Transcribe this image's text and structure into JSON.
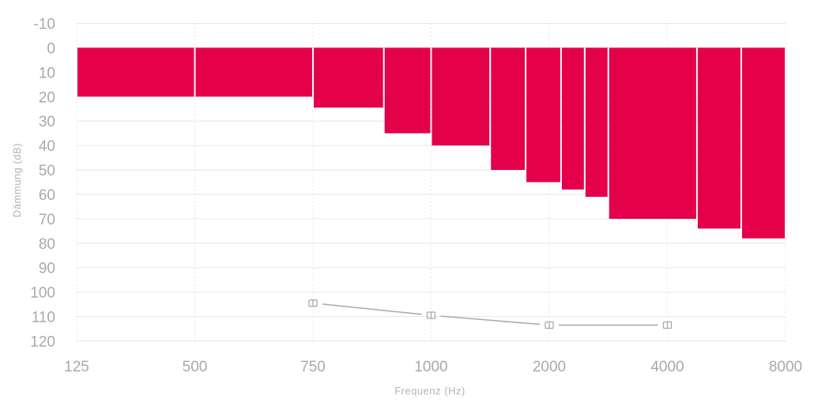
{
  "chart_data": {
    "type": "bar",
    "xlabel": "Frequenz (Hz)",
    "ylabel": "Dämmung (dB)",
    "x_tick_labels": [
      "125",
      "500",
      "750",
      "1000",
      "2000",
      "4000",
      "8000"
    ],
    "y_tick_labels": [
      "-10",
      "0",
      "10",
      "20",
      "30",
      "40",
      "50",
      "60",
      "70",
      "80",
      "90",
      "100",
      "110",
      "120"
    ],
    "ylim": [
      -10,
      120
    ],
    "y_inverted": true,
    "bar_color": "#e4004b",
    "marker_color": "#a9a9a9",
    "grid": true,
    "bars": [
      {
        "x_start": 125,
        "x_end": 500,
        "value": 20
      },
      {
        "x_start": 500,
        "x_end": 750,
        "value": 20
      },
      {
        "x_start": 750,
        "x_end": 900,
        "value": 24.5
      },
      {
        "x_start": 900,
        "x_end": 1000,
        "value": 35
      },
      {
        "x_start": 1000,
        "x_end": 1500,
        "value": 40
      },
      {
        "x_start": 1500,
        "x_end": 1800,
        "value": 50
      },
      {
        "x_start": 1800,
        "x_end": 2200,
        "value": 55
      },
      {
        "x_start": 2200,
        "x_end": 2600,
        "value": 58
      },
      {
        "x_start": 2600,
        "x_end": 3000,
        "value": 61
      },
      {
        "x_start": 3000,
        "x_end": 5000,
        "value": 70
      },
      {
        "x_start": 5000,
        "x_end": 6500,
        "value": 74
      },
      {
        "x_start": 6500,
        "x_end": 8000,
        "value": 78
      }
    ],
    "marker_series": [
      {
        "x": 750,
        "y": 104.5
      },
      {
        "x": 1000,
        "y": 109.5
      },
      {
        "x": 2000,
        "y": 113.5
      },
      {
        "x": 4000,
        "y": 113.5
      }
    ]
  }
}
